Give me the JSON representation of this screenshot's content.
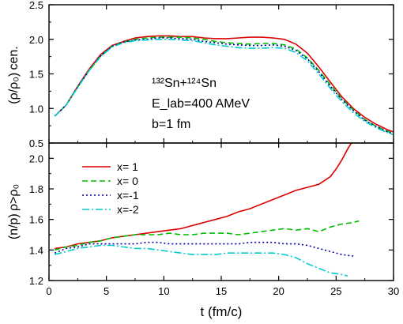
{
  "chart_data": [
    {
      "type": "line",
      "panel": "top",
      "ylabel": "(ρ/ρ₀) cen.",
      "ylim": [
        0.5,
        2.5
      ],
      "yticks": [
        "0.5",
        "1.0",
        "1.5",
        "2.0",
        "2.5"
      ],
      "xlim": [
        0,
        30
      ],
      "annotations": {
        "reaction": "¹³²Sn+¹²⁴Sn",
        "elab": "E_lab=400 AMeV",
        "impact": "b=1 fm"
      },
      "x": [
        0.5,
        1.5,
        2.5,
        3.5,
        4.5,
        5.5,
        6.5,
        7.5,
        8.5,
        9.5,
        10.5,
        11.5,
        12.5,
        13.5,
        14.5,
        15.5,
        16.5,
        17.5,
        18.5,
        19.5,
        20.5,
        21.5,
        22.5,
        23.5,
        24.5,
        25.5,
        26.5,
        27.5,
        28.5,
        29.5,
        30
      ],
      "series": [
        {
          "name": "x= 1",
          "values": [
            0.89,
            1.05,
            1.32,
            1.57,
            1.78,
            1.91,
            1.97,
            2.02,
            2.04,
            2.05,
            2.05,
            2.04,
            2.04,
            2.02,
            2.01,
            2.01,
            2.02,
            2.03,
            2.03,
            2.02,
            2.0,
            1.93,
            1.8,
            1.6,
            1.38,
            1.17,
            1.0,
            0.87,
            0.77,
            0.69,
            0.66
          ]
        },
        {
          "name": "x= 0",
          "values": [
            0.89,
            1.05,
            1.31,
            1.55,
            1.76,
            1.9,
            1.96,
            2.0,
            2.02,
            2.03,
            2.03,
            2.03,
            2.02,
            2.0,
            1.97,
            1.95,
            1.94,
            1.93,
            1.94,
            1.94,
            1.92,
            1.86,
            1.73,
            1.55,
            1.34,
            1.14,
            0.98,
            0.84,
            0.74,
            0.67,
            0.64
          ]
        },
        {
          "name": "x=-1",
          "values": [
            0.89,
            1.05,
            1.31,
            1.55,
            1.76,
            1.9,
            1.96,
            1.99,
            2.0,
            2.02,
            2.02,
            2.01,
            2.0,
            1.97,
            1.95,
            1.93,
            1.92,
            1.91,
            1.91,
            1.92,
            1.9,
            1.84,
            1.72,
            1.53,
            1.32,
            1.13,
            0.97,
            0.83,
            0.74,
            0.66,
            0.63
          ]
        },
        {
          "name": "x=-2",
          "values": [
            0.89,
            1.05,
            1.3,
            1.55,
            1.75,
            1.89,
            1.95,
            1.98,
            1.99,
            2.0,
            2.0,
            1.99,
            1.98,
            1.95,
            1.92,
            1.9,
            1.88,
            1.87,
            1.87,
            1.88,
            1.87,
            1.81,
            1.69,
            1.5,
            1.29,
            1.1,
            0.94,
            0.81,
            0.72,
            0.65,
            0.62
          ]
        }
      ]
    },
    {
      "type": "line",
      "panel": "bottom",
      "ylabel": "(n/p) ρ>ρ₀",
      "ylim": [
        1.2,
        2.1
      ],
      "yticks": [
        "1.2",
        "1.4",
        "1.6",
        "1.8",
        "2.0"
      ],
      "xlabel": "t (fm/c)",
      "xlim": [
        0,
        30
      ],
      "xticks": [
        "0",
        "5",
        "10",
        "15",
        "20",
        "25",
        "30"
      ],
      "legend": "top-left",
      "series": [
        {
          "name": "x= 1",
          "x": [
            0.5,
            1.5,
            2.5,
            3.5,
            4.5,
            5.5,
            6.5,
            7.5,
            8.5,
            9.5,
            10.5,
            11.5,
            12.5,
            13.5,
            14.5,
            15.5,
            16.5,
            17.5,
            18.5,
            19.5,
            20.5,
            21.5,
            22.5,
            23.5,
            24.5,
            25.0,
            25.5,
            26.0,
            26.5
          ],
          "values": [
            1.41,
            1.42,
            1.44,
            1.45,
            1.46,
            1.48,
            1.49,
            1.5,
            1.51,
            1.52,
            1.53,
            1.54,
            1.56,
            1.58,
            1.6,
            1.62,
            1.65,
            1.67,
            1.7,
            1.73,
            1.76,
            1.79,
            1.81,
            1.83,
            1.88,
            1.93,
            1.99,
            2.06,
            2.12
          ]
        },
        {
          "name": "x= 0",
          "x": [
            0.5,
            1.5,
            2.5,
            3.5,
            4.5,
            5.5,
            6.5,
            7.5,
            8.5,
            9.5,
            10.5,
            11.5,
            12.5,
            13.5,
            14.5,
            15.5,
            16.5,
            17.5,
            18.5,
            19.5,
            20.5,
            21.5,
            22.5,
            23.5,
            24.5,
            25.5,
            26.5,
            27.0
          ],
          "values": [
            1.4,
            1.42,
            1.43,
            1.45,
            1.46,
            1.48,
            1.49,
            1.5,
            1.5,
            1.5,
            1.51,
            1.5,
            1.5,
            1.51,
            1.51,
            1.51,
            1.5,
            1.51,
            1.52,
            1.53,
            1.54,
            1.53,
            1.54,
            1.52,
            1.55,
            1.57,
            1.58,
            1.59
          ]
        },
        {
          "name": "x=-1",
          "x": [
            0.5,
            1.5,
            2.5,
            3.5,
            4.5,
            5.5,
            6.5,
            7.5,
            8.5,
            9.5,
            10.5,
            11.5,
            12.5,
            13.5,
            14.5,
            15.5,
            16.5,
            17.5,
            18.5,
            19.5,
            20.5,
            21.5,
            22.5,
            23.5,
            24.5,
            25.5,
            26.5
          ],
          "values": [
            1.38,
            1.41,
            1.42,
            1.44,
            1.44,
            1.44,
            1.44,
            1.44,
            1.45,
            1.45,
            1.44,
            1.44,
            1.44,
            1.44,
            1.44,
            1.44,
            1.44,
            1.45,
            1.45,
            1.45,
            1.44,
            1.44,
            1.43,
            1.41,
            1.39,
            1.37,
            1.36
          ]
        },
        {
          "name": "x=-2",
          "x": [
            0.5,
            1.5,
            2.5,
            3.5,
            4.5,
            5.5,
            6.5,
            7.5,
            8.5,
            9.5,
            10.5,
            11.5,
            12.5,
            13.5,
            14.5,
            15.5,
            16.5,
            17.5,
            18.5,
            19.5,
            20.5,
            21.5,
            22.5,
            23.5,
            24.5,
            25.5,
            26.0
          ],
          "values": [
            1.37,
            1.39,
            1.41,
            1.42,
            1.43,
            1.43,
            1.42,
            1.41,
            1.41,
            1.4,
            1.39,
            1.38,
            1.37,
            1.37,
            1.37,
            1.38,
            1.38,
            1.38,
            1.38,
            1.38,
            1.37,
            1.35,
            1.31,
            1.28,
            1.25,
            1.24,
            1.23
          ]
        }
      ]
    }
  ],
  "styles": {
    "x= 1": {
      "color": "#dd0000",
      "dash": ""
    },
    "x= 0": {
      "color": "#00bb00",
      "dash": "7,4"
    },
    "x=-1": {
      "color": "#0000aa",
      "dash": "2,3"
    },
    "x=-2": {
      "color": "#00cccc",
      "dash": "9,3,2,3"
    }
  }
}
